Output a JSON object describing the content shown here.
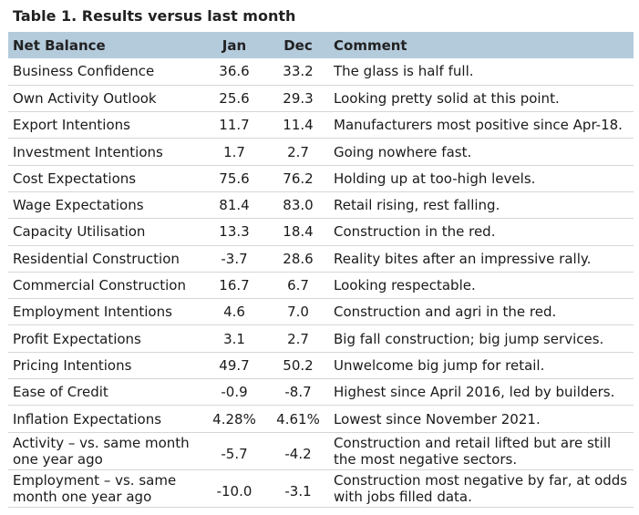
{
  "title": "Table 1. Results versus last month",
  "headers": {
    "name": "Net Balance",
    "jan": "Jan",
    "dec": "Dec",
    "comment": "Comment"
  },
  "rows": [
    {
      "name": "Business Confidence",
      "jan": "36.6",
      "dec": "33.2",
      "comment": "The glass is half full."
    },
    {
      "name": "Own Activity Outlook",
      "jan": "25.6",
      "dec": "29.3",
      "comment": "Looking pretty solid at this point."
    },
    {
      "name": "Export Intentions",
      "jan": "11.7",
      "dec": "11.4",
      "comment": "Manufacturers most positive since Apr-18."
    },
    {
      "name": "Investment Intentions",
      "jan": "1.7",
      "dec": "2.7",
      "comment": "Going nowhere fast."
    },
    {
      "name": "Cost Expectations",
      "jan": "75.6",
      "dec": "76.2",
      "comment": "Holding up at too-high levels."
    },
    {
      "name": "Wage Expectations",
      "jan": "81.4",
      "dec": "83.0",
      "comment": "Retail rising, rest falling."
    },
    {
      "name": "Capacity Utilisation",
      "jan": "13.3",
      "dec": "18.4",
      "comment": "Construction in the red."
    },
    {
      "name": "Residential Construction",
      "jan": "-3.7",
      "dec": "28.6",
      "comment": "Reality bites after an impressive rally."
    },
    {
      "name": "Commercial Construction",
      "jan": "16.7",
      "dec": "6.7",
      "comment": "Looking respectable."
    },
    {
      "name": "Employment Intentions",
      "jan": "4.6",
      "dec": "7.0",
      "comment": "Construction and agri in the red."
    },
    {
      "name": "Profit Expectations",
      "jan": "3.1",
      "dec": "2.7",
      "comment": "Big fall construction; big jump services."
    },
    {
      "name": "Pricing Intentions",
      "jan": "49.7",
      "dec": "50.2",
      "comment": "Unwelcome big jump for retail."
    },
    {
      "name": "Ease of Credit",
      "jan": "-0.9",
      "dec": "-8.7",
      "comment": "Highest since April 2016, led by builders."
    },
    {
      "name": "Inflation Expectations",
      "jan": "4.28%",
      "dec": "4.61%",
      "comment": "Lowest since November 2021."
    },
    {
      "name": "Activity – vs. same month one year ago",
      "jan": "-5.7",
      "dec": "-4.2",
      "comment": "Construction and retail lifted but are still the most negative sectors."
    },
    {
      "name": "Employment – vs. same month one year ago",
      "jan": "-10.0",
      "dec": "-3.1",
      "comment": "Construction most negative by far, at odds with jobs filled data."
    }
  ]
}
